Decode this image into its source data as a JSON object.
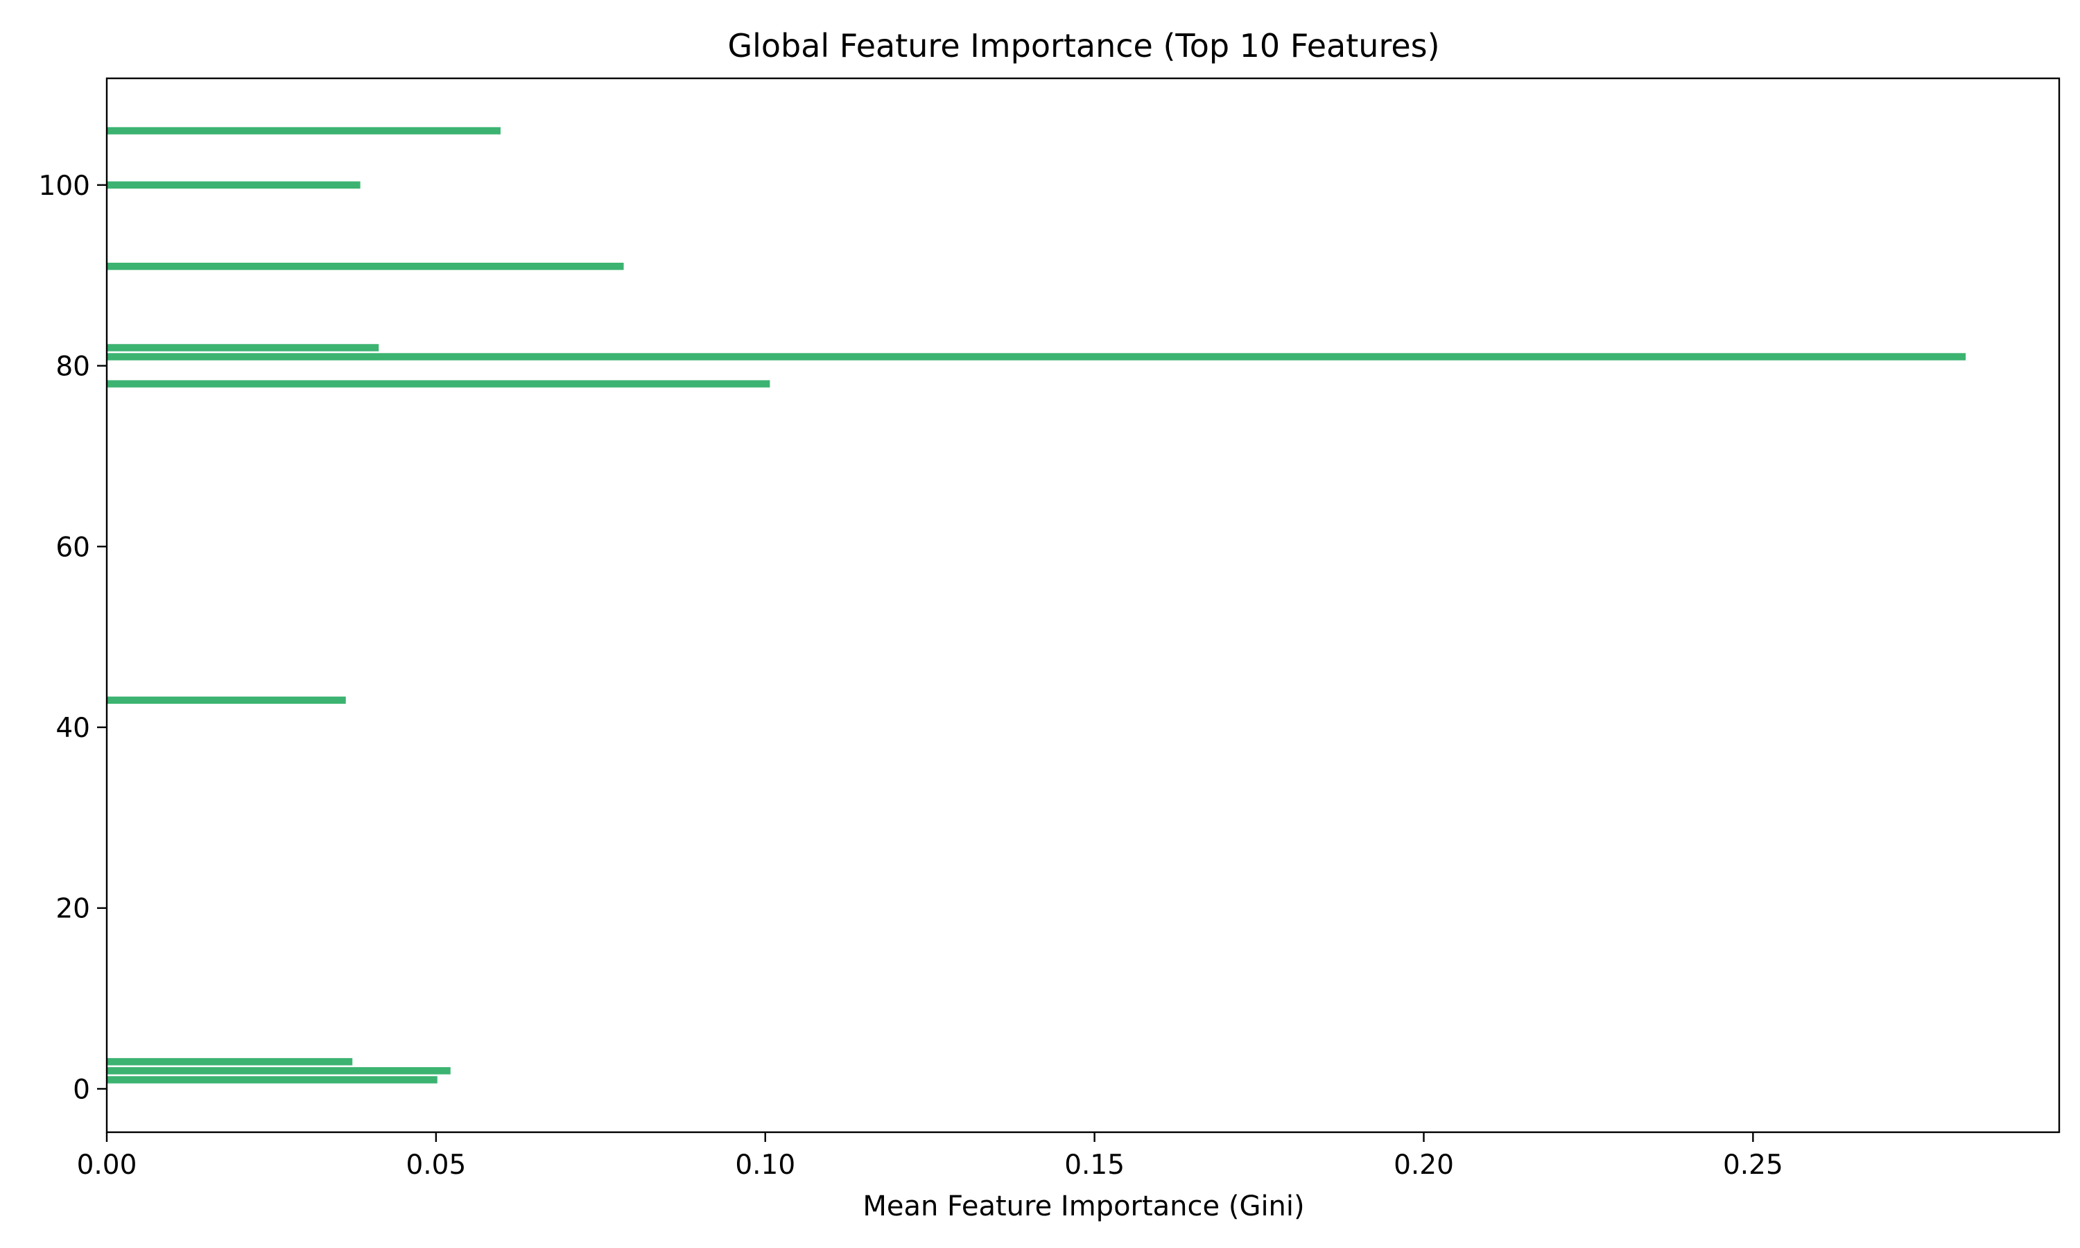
{
  "chart_data": {
    "type": "bar",
    "orientation": "horizontal",
    "title": "Global Feature Importance (Top 10 Features)",
    "xlabel": "Mean Feature Importance (Gini)",
    "ylabel": "",
    "xlim": [
      0,
      0.2965
    ],
    "ylim": [
      -4.8,
      111.8
    ],
    "xticks": [
      0.0,
      0.05,
      0.1,
      0.15,
      0.2,
      0.25
    ],
    "xtick_labels": [
      "0.00",
      "0.05",
      "0.10",
      "0.15",
      "0.20",
      "0.25"
    ],
    "yticks": [
      0,
      20,
      40,
      60,
      80,
      100
    ],
    "ytick_labels": [
      "0",
      "20",
      "40",
      "60",
      "80",
      "100"
    ],
    "grid": false,
    "bar_color": "#3cb371",
    "bars": [
      {
        "y": 1,
        "value": 0.0502
      },
      {
        "y": 2,
        "value": 0.0522
      },
      {
        "y": 3,
        "value": 0.0373
      },
      {
        "y": 43,
        "value": 0.0363
      },
      {
        "y": 78,
        "value": 0.1007
      },
      {
        "y": 81,
        "value": 0.2823
      },
      {
        "y": 82,
        "value": 0.0413
      },
      {
        "y": 91,
        "value": 0.0785
      },
      {
        "y": 100,
        "value": 0.0385
      },
      {
        "y": 106,
        "value": 0.0598
      }
    ]
  }
}
